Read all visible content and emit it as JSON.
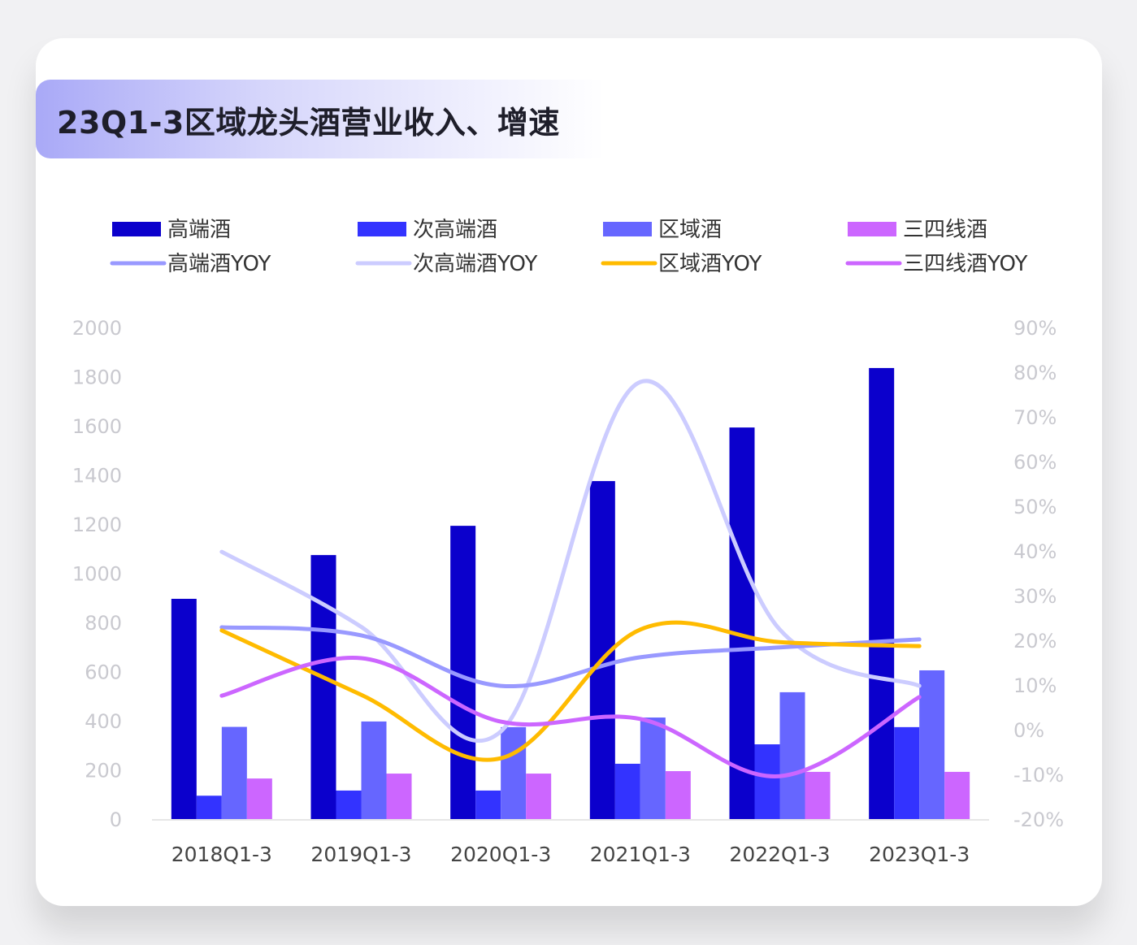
{
  "title": "23Q1-3区域龙头酒营业收入、增速",
  "chart_data": {
    "type": "bar+line",
    "title": "23Q1-3区域龙头酒营业收入、增速",
    "categories": [
      "2018Q1-3",
      "2019Q1-3",
      "2020Q1-3",
      "2021Q1-3",
      "2022Q1-3",
      "2023Q1-3"
    ],
    "y_left": {
      "range": [
        0,
        2000
      ],
      "ticks": [
        "0",
        "200",
        "400",
        "600",
        "800",
        "1000",
        "1200",
        "1400",
        "1600",
        "1800",
        "2000"
      ]
    },
    "y_right": {
      "range": [
        -20,
        90
      ],
      "unit": "%",
      "ticks": [
        "-20%",
        "-10%",
        "0%",
        "10%",
        "20%",
        "30%",
        "40%",
        "50%",
        "60%",
        "70%",
        "80%",
        "90%"
      ]
    },
    "grid": false,
    "legend_position": "top",
    "bar_series": [
      {
        "name": "高端酒",
        "color": "#0b00cc",
        "values": [
          896,
          1074,
          1193,
          1375,
          1593,
          1835
        ]
      },
      {
        "name": "次高端酒",
        "color": "#3333ff",
        "values": [
          95,
          116,
          116,
          225,
          304,
          374
        ]
      },
      {
        "name": "区域酒",
        "color": "#6666ff",
        "values": [
          375,
          397,
          374,
          413,
          516,
          605
        ]
      },
      {
        "name": "三四线酒",
        "color": "#cc66ff",
        "values": [
          165,
          185,
          185,
          195,
          192,
          192
        ]
      }
    ],
    "line_series": [
      {
        "name": "高端酒YOY",
        "color": "#9999ff",
        "values": [
          22.9,
          21.1,
          9.8,
          16.2,
          18.4,
          20.2
        ]
      },
      {
        "name": "次高端酒YOY",
        "color": "#ccccff",
        "values": [
          39.8,
          23.0,
          -0.4,
          77.8,
          22.4,
          9.8
        ]
      },
      {
        "name": "区域酒YOY",
        "color": "#ffbb00",
        "values": [
          22.2,
          7.8,
          -6.4,
          22.4,
          19.6,
          18.7
        ]
      },
      {
        "name": "三四线酒YOY",
        "color": "#cc66ff",
        "values": [
          7.6,
          16.0,
          1.8,
          2.4,
          -10.4,
          7.3
        ]
      }
    ]
  }
}
